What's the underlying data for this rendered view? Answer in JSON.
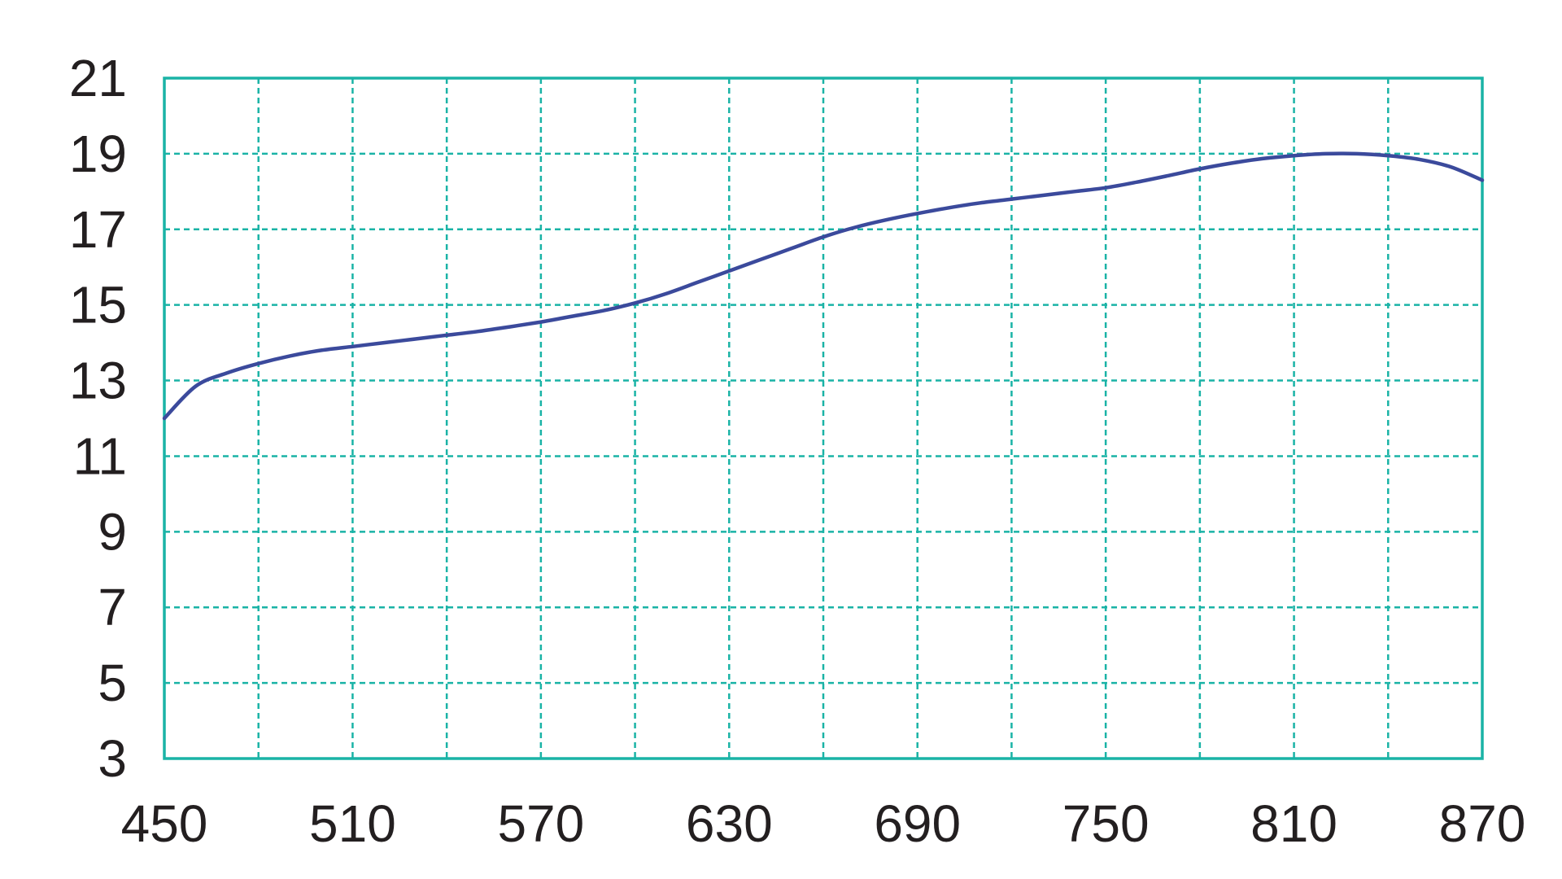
{
  "chart_data": {
    "type": "line",
    "title": "",
    "xlabel": "",
    "ylabel": "",
    "xlim": [
      450,
      870
    ],
    "ylim": [
      3,
      21
    ],
    "x_ticks": [
      450,
      510,
      570,
      630,
      690,
      750,
      810,
      870
    ],
    "y_ticks": [
      3,
      5,
      7,
      9,
      11,
      13,
      15,
      17,
      19,
      21
    ],
    "x_tick_labels": [
      "450",
      "510",
      "570",
      "630",
      "690",
      "750",
      "810",
      "870"
    ],
    "y_tick_labels": [
      "3",
      "5",
      "7",
      "9",
      "11",
      "13",
      "15",
      "17",
      "19",
      "21"
    ],
    "x_grid": [
      450,
      480,
      510,
      540,
      570,
      600,
      630,
      660,
      690,
      720,
      750,
      780,
      810,
      840,
      870
    ],
    "y_grid": [
      3,
      5,
      7,
      9,
      11,
      13,
      15,
      17,
      19,
      21
    ],
    "grid": true,
    "legend": "none",
    "colors": {
      "grid": "#1ab3a6",
      "frame": "#1ab3a6",
      "line": "#3b4a9c",
      "text": "#231f20"
    },
    "series": [
      {
        "x": [
          450,
          460,
          470,
          480,
          490,
          500,
          510,
          520,
          530,
          540,
          550,
          560,
          570,
          580,
          590,
          600,
          610,
          620,
          630,
          640,
          650,
          660,
          670,
          680,
          690,
          700,
          710,
          720,
          730,
          740,
          750,
          760,
          770,
          780,
          790,
          800,
          810,
          820,
          830,
          840,
          850,
          860,
          870
        ],
        "y": [
          12.0,
          12.85,
          13.2,
          13.45,
          13.65,
          13.8,
          13.9,
          14.0,
          14.1,
          14.2,
          14.3,
          14.42,
          14.55,
          14.7,
          14.85,
          15.05,
          15.3,
          15.6,
          15.9,
          16.2,
          16.5,
          16.8,
          17.05,
          17.25,
          17.42,
          17.57,
          17.7,
          17.8,
          17.9,
          18.0,
          18.1,
          18.25,
          18.42,
          18.6,
          18.75,
          18.87,
          18.95,
          19.0,
          19.0,
          18.95,
          18.85,
          18.65,
          18.3
        ]
      }
    ]
  }
}
